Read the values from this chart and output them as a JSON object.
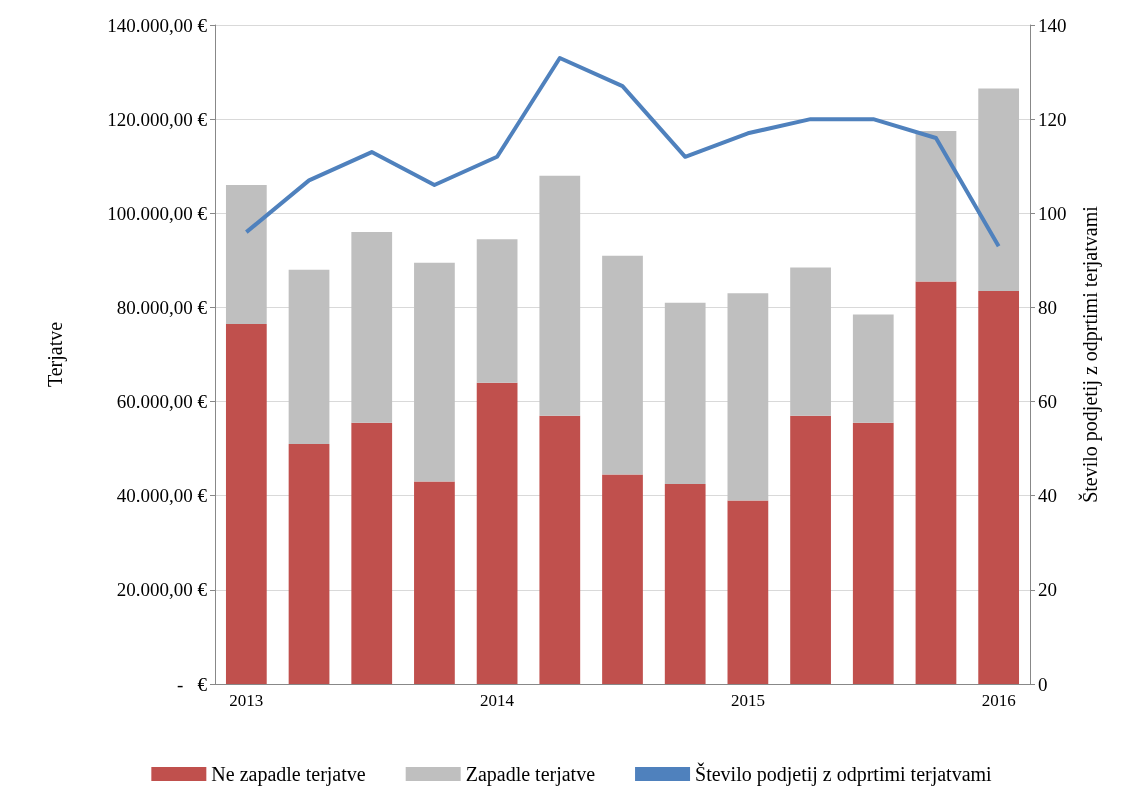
{
  "chart_data": {
    "type": "bar",
    "stacked": true,
    "ylabel": "Terjatve",
    "y2label": "Število podjetij z odprtimi terjatvami",
    "categories": [
      "2013",
      null,
      null,
      null,
      "2014",
      null,
      null,
      null,
      "2015",
      null,
      null,
      null,
      "2016"
    ],
    "series": [
      {
        "name": "Ne zapadle terjatve",
        "color": "#c0504d",
        "values": [
          76500,
          51000,
          55500,
          43000,
          64000,
          57000,
          44500,
          42500,
          39000,
          57000,
          55500,
          85500,
          83500
        ]
      },
      {
        "name": "Zapadle terjatve",
        "color": "#bfbfbf",
        "values": [
          29500,
          37000,
          40500,
          46500,
          30500,
          51000,
          46500,
          38500,
          44000,
          31500,
          23000,
          32000,
          43000
        ]
      },
      {
        "name": "Število podjetij z odprtimi terjatvami",
        "type": "line",
        "axis": "y2",
        "color": "#4f81bd",
        "values": [
          96,
          107,
          113,
          106,
          112,
          133,
          127,
          112,
          117,
          120,
          120,
          116,
          93
        ]
      }
    ],
    "ylim": [
      0,
      140000
    ],
    "yticks": [
      {
        "value": 0,
        "label": "-   €"
      },
      {
        "value": 20000,
        "label": "20.000,00 €"
      },
      {
        "value": 40000,
        "label": "40.000,00 €"
      },
      {
        "value": 60000,
        "label": "60.000,00 €"
      },
      {
        "value": 80000,
        "label": "80.000,00 €"
      },
      {
        "value": 100000,
        "label": "100.000,00 €"
      },
      {
        "value": 120000,
        "label": "120.000,00 €"
      },
      {
        "value": 140000,
        "label": "140.000,00 €"
      }
    ],
    "y2lim": [
      0,
      140
    ],
    "y2ticks": [
      0,
      20,
      40,
      60,
      80,
      100,
      120,
      140
    ],
    "grid": "y",
    "legend": "bottom",
    "marker": "none"
  }
}
